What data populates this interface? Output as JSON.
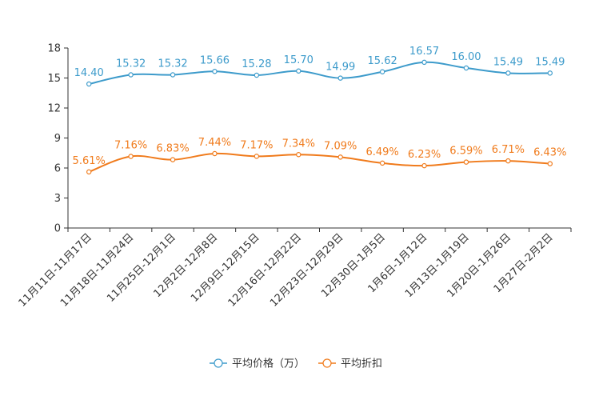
{
  "chart_data": {
    "type": "line",
    "title": "",
    "xlabel": "",
    "ylabel": "",
    "ylim": [
      0,
      18
    ],
    "yticks": [
      0,
      3,
      6,
      9,
      12,
      15,
      18
    ],
    "grid": false,
    "legend_position": "bottom-center",
    "categories": [
      "11月11日-11月17日",
      "11月18日-11月24日",
      "11月25日-12月1日",
      "12月2日-12月8日",
      "12月9日-12月15日",
      "12月16日-12月22日",
      "12月23日-12月29日",
      "12月30日-1月5日",
      "1月6日-1月12日",
      "1月13日-1月19日",
      "1月20日-1月26日",
      "1月27日-2月2日"
    ],
    "series": [
      {
        "name": "平均价格（万）",
        "color": "#3d9bcb",
        "values": [
          14.4,
          15.32,
          15.32,
          15.66,
          15.28,
          15.7,
          14.99,
          15.62,
          16.57,
          16.0,
          15.49,
          15.49
        ],
        "labels": [
          "14.40",
          "15.32",
          "15.32",
          "15.66",
          "15.28",
          "15.70",
          "14.99",
          "15.62",
          "16.57",
          "16.00",
          "15.49",
          "15.49"
        ]
      },
      {
        "name": "平均折扣",
        "color": "#f07b1c",
        "values": [
          5.61,
          7.16,
          6.83,
          7.44,
          7.17,
          7.34,
          7.09,
          6.49,
          6.23,
          6.59,
          6.71,
          6.43
        ],
        "labels": [
          "5.61%",
          "7.16%",
          "6.83%",
          "7.44%",
          "7.17%",
          "7.34%",
          "7.09%",
          "6.49%",
          "6.23%",
          "6.59%",
          "6.71%",
          "6.43%"
        ]
      }
    ]
  }
}
